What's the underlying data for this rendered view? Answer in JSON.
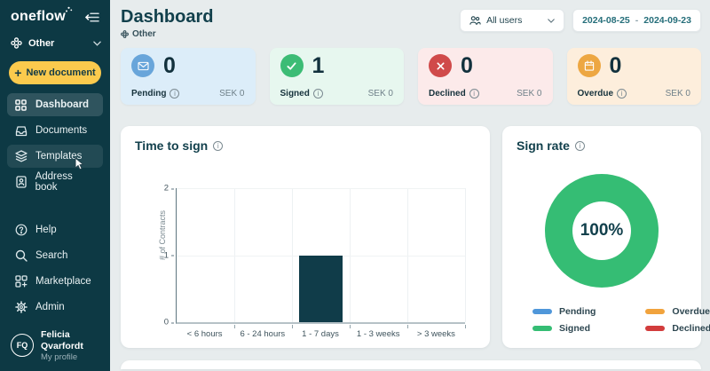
{
  "sidebar": {
    "logo": "oneflow",
    "workspace": {
      "label": "Other"
    },
    "new_document_label": "New document",
    "nav": [
      {
        "label": "Dashboard",
        "icon": "grid-icon",
        "active": true
      },
      {
        "label": "Documents",
        "icon": "tray-icon",
        "active": false
      },
      {
        "label": "Templates",
        "icon": "layers-icon",
        "active": false
      },
      {
        "label": "Address book",
        "icon": "contact-book-icon",
        "active": false
      }
    ],
    "utility": [
      {
        "label": "Help",
        "icon": "help-icon"
      },
      {
        "label": "Search",
        "icon": "search-icon"
      },
      {
        "label": "Marketplace",
        "icon": "marketplace-icon"
      },
      {
        "label": "Admin",
        "icon": "gear-icon"
      }
    ],
    "profile": {
      "initials": "FQ",
      "name": "Felicia Qvarfordt",
      "subtitle": "My profile"
    }
  },
  "header": {
    "title": "Dashboard",
    "workspace_label": "Other",
    "user_filter_label": "All users",
    "date_range": {
      "start": "2024-08-25",
      "separator": "-",
      "end": "2024-09-23"
    }
  },
  "stat_cards": [
    {
      "label": "Pending",
      "count": "0",
      "amount": "SEK 0",
      "bg": "#dcedf9",
      "icon_bg": "#68a5da",
      "icon": "envelope-icon"
    },
    {
      "label": "Signed",
      "count": "1",
      "amount": "SEK 0",
      "bg": "#e7f7ef",
      "icon_bg": "#3cbc75",
      "icon": "check-icon"
    },
    {
      "label": "Declined",
      "count": "0",
      "amount": "SEK 0",
      "bg": "#fceaea",
      "icon_bg": "#d04a4a",
      "icon": "x-icon"
    },
    {
      "label": "Overdue",
      "count": "0",
      "amount": "SEK 0",
      "bg": "#fdeedc",
      "icon_bg": "#eda742",
      "icon": "calendar-icon"
    }
  ],
  "cards": {
    "time_to_sign": {
      "title": "Time to sign"
    },
    "sign_rate": {
      "title": "Sign rate",
      "center_label": "100%"
    }
  },
  "sign_rate_legend": [
    {
      "label": "Pending",
      "color": "#4f97da"
    },
    {
      "label": "Overdue",
      "color": "#f1a33d"
    },
    {
      "label": "Signed",
      "color": "#35bd74"
    },
    {
      "label": "Declined",
      "color": "#d23c3c"
    }
  ],
  "chart_data": [
    {
      "type": "bar",
      "title": "Time to sign",
      "categories": [
        "< 6 hours",
        "6 - 24 hours",
        "1 - 7 days",
        "1 - 3 weeks",
        "> 3 weeks"
      ],
      "values": [
        0,
        0,
        1,
        0,
        0
      ],
      "xlabel": "",
      "ylabel": "# of Contracts",
      "yticks": [
        0,
        1,
        2
      ],
      "ylim": [
        0,
        2
      ],
      "bar_color": "#103c49",
      "grid": true,
      "legend_position": "none"
    },
    {
      "type": "pie",
      "title": "Sign rate",
      "donut": true,
      "labels": [
        "Pending",
        "Overdue",
        "Signed",
        "Declined"
      ],
      "values": [
        0,
        0,
        100,
        0
      ],
      "colors": [
        "#4f97da",
        "#f1a33d",
        "#35bd74",
        "#d23c3c"
      ],
      "center_label": "100%",
      "legend_position": "bottom"
    }
  ]
}
